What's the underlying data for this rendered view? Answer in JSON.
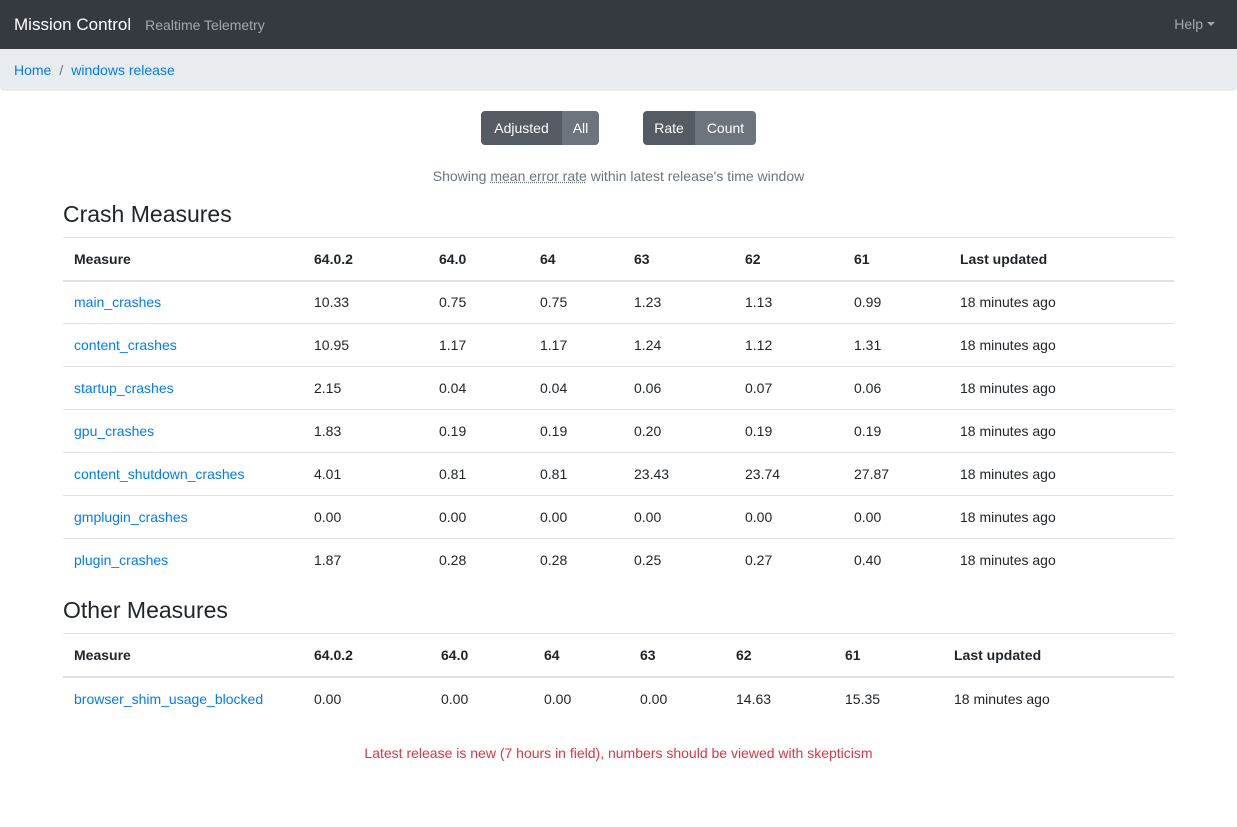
{
  "navbar": {
    "brand": "Mission Control",
    "subtitle": "Realtime Telemetry",
    "help": "Help"
  },
  "breadcrumb": {
    "home": "Home",
    "current": "windows release"
  },
  "toggles": {
    "group1": [
      {
        "label": "Adjusted",
        "active": true
      },
      {
        "label": "All",
        "active": false
      }
    ],
    "group2": [
      {
        "label": "Rate",
        "active": true
      },
      {
        "label": "Count",
        "active": false
      }
    ]
  },
  "caption": {
    "prefix": "Showing ",
    "abbr": "mean error rate",
    "suffix": " within latest release's time window"
  },
  "crash_section": {
    "title": "Crash Measures",
    "headers": [
      "Measure",
      "64.0.2",
      "64.0",
      "64",
      "63",
      "62",
      "61",
      "Last updated"
    ],
    "rows": [
      [
        "main_crashes",
        "10.33",
        "0.75",
        "0.75",
        "1.23",
        "1.13",
        "0.99",
        "18 minutes ago"
      ],
      [
        "content_crashes",
        "10.95",
        "1.17",
        "1.17",
        "1.24",
        "1.12",
        "1.31",
        "18 minutes ago"
      ],
      [
        "startup_crashes",
        "2.15",
        "0.04",
        "0.04",
        "0.06",
        "0.07",
        "0.06",
        "18 minutes ago"
      ],
      [
        "gpu_crashes",
        "1.83",
        "0.19",
        "0.19",
        "0.20",
        "0.19",
        "0.19",
        "18 minutes ago"
      ],
      [
        "content_shutdown_crashes",
        "4.01",
        "0.81",
        "0.81",
        "23.43",
        "23.74",
        "27.87",
        "18 minutes ago"
      ],
      [
        "gmplugin_crashes",
        "0.00",
        "0.00",
        "0.00",
        "0.00",
        "0.00",
        "0.00",
        "18 minutes ago"
      ],
      [
        "plugin_crashes",
        "1.87",
        "0.28",
        "0.28",
        "0.25",
        "0.27",
        "0.40",
        "18 minutes ago"
      ]
    ]
  },
  "other_section": {
    "title": "Other Measures",
    "headers": [
      "Measure",
      "64.0.2",
      "64.0",
      "64",
      "63",
      "62",
      "61",
      "Last updated"
    ],
    "rows": [
      [
        "browser_shim_usage_blocked",
        "0.00",
        "0.00",
        "0.00",
        "0.00",
        "14.63",
        "15.35",
        "18 minutes ago"
      ]
    ]
  },
  "warning": "Latest release is new (7 hours in field), numbers should be viewed with skepticism",
  "colors": {
    "navbar_bg": "#343a40",
    "link": "#007bff",
    "warning": "#dc3545",
    "btn_active": "#545b62",
    "btn_inactive": "#6c757d"
  }
}
